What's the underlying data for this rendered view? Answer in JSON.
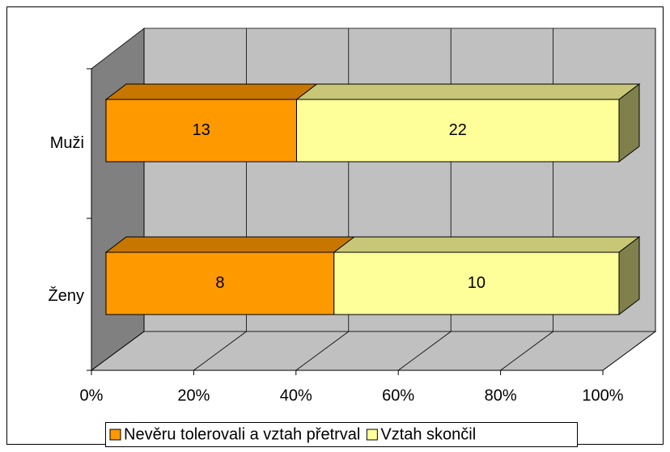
{
  "chart_data": {
    "type": "bar",
    "orientation": "horizontal",
    "stacked": "percent",
    "three_d": true,
    "categories": [
      "Muži",
      "Ženy"
    ],
    "series": [
      {
        "name": "Nevěru tolerovali a vztah přetrval",
        "color": "#ff9900",
        "values": [
          13,
          8
        ]
      },
      {
        "name": "Vztah skončil",
        "color": "#ffff99",
        "values": [
          22,
          10
        ]
      }
    ],
    "xlim": [
      0,
      100
    ],
    "xticks": [
      {
        "value": 0,
        "label": "0%"
      },
      {
        "value": 20,
        "label": "20%"
      },
      {
        "value": 40,
        "label": "40%"
      },
      {
        "value": 60,
        "label": "60%"
      },
      {
        "value": 80,
        "label": "80%"
      },
      {
        "value": 100,
        "label": "100%"
      }
    ],
    "grid": true,
    "legend": "bottom"
  }
}
